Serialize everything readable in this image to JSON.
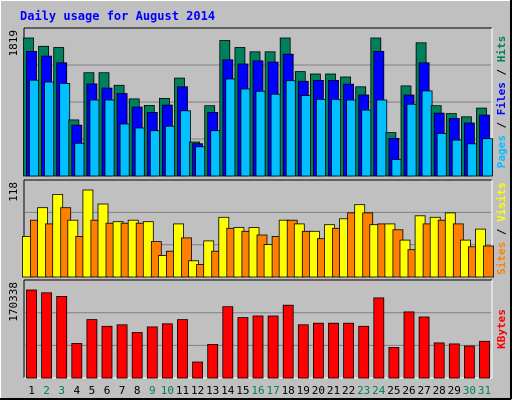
{
  "title": "Daily usage for August 2014",
  "colors": {
    "background": "#c0c0c0",
    "plot": "#c0c0c0",
    "title": "#0000ff",
    "hits": "#00805c",
    "files": "#0000ff",
    "pages": "#00c0ff",
    "visits": "#ffff00",
    "sites": "#ff8000",
    "kbytes": "#ff0000",
    "label_normal": "#000000",
    "label_weekend": "#00805c"
  },
  "chart_data": [
    {
      "type": "bar",
      "panel": "hits-files-pages",
      "title": "Daily usage for August 2014",
      "ylabel": "Pages / Files / Hits",
      "ymax_label": "1819",
      "ylim": [
        0,
        1819
      ],
      "categories": [
        "1",
        "2",
        "3",
        "4",
        "5",
        "6",
        "7",
        "8",
        "9",
        "10",
        "11",
        "12",
        "13",
        "14",
        "15",
        "16",
        "17",
        "18",
        "19",
        "20",
        "21",
        "22",
        "23",
        "24",
        "25",
        "26",
        "27",
        "28",
        "29",
        "30",
        "31"
      ],
      "series": [
        {
          "name": "Hits",
          "values": [
            1819,
            1710,
            1694,
            740,
            1361,
            1361,
            1195,
            1016,
            931,
            1023,
            1290,
            448,
            927,
            1786,
            1694,
            1637,
            1637,
            1819,
            1376,
            1344,
            1344,
            1305,
            1176,
            1819,
            572,
            1187,
            1756,
            926,
            823,
            780,
            895
          ]
        },
        {
          "name": "Files",
          "values": [
            1643,
            1580,
            1492,
            670,
            1214,
            1159,
            1088,
            910,
            838,
            934,
            1176,
            426,
            838,
            1531,
            1476,
            1518,
            1501,
            1606,
            1248,
            1260,
            1260,
            1210,
            1068,
            1643,
            495,
            1068,
            1492,
            829,
            758,
            699,
            803
          ]
        },
        {
          "name": "Pages",
          "values": [
            1263,
            1239,
            1220,
            431,
            1002,
            1002,
            686,
            633,
            597,
            657,
            860,
            385,
            597,
            1279,
            1147,
            1116,
            1078,
            1256,
            1060,
            1010,
            1010,
            1002,
            869,
            1002,
            218,
            945,
            1122,
            560,
            473,
            424,
            492
          ]
        }
      ]
    },
    {
      "type": "bar",
      "panel": "visits-sites",
      "ylabel": "Sites / Visits",
      "ymax_label": "118",
      "ylim": [
        0,
        118
      ],
      "categories": [
        "1",
        "2",
        "3",
        "4",
        "5",
        "6",
        "7",
        "8",
        "9",
        "10",
        "11",
        "12",
        "13",
        "14",
        "15",
        "16",
        "17",
        "18",
        "19",
        "20",
        "21",
        "22",
        "23",
        "24",
        "25",
        "26",
        "27",
        "28",
        "29",
        "30",
        "31"
      ],
      "series": [
        {
          "name": "Visits",
          "values": [
            55,
            94,
            112,
            77,
            118,
            99,
            75,
            77,
            75,
            29,
            72,
            22,
            49,
            81,
            67,
            67,
            44,
            77,
            72,
            62,
            71,
            79,
            98,
            71,
            72,
            50,
            83,
            81,
            87,
            50,
            65
          ]
        },
        {
          "name": "Sites",
          "values": [
            77,
            72,
            94,
            55,
            77,
            73,
            73,
            73,
            48,
            35,
            53,
            17,
            35,
            66,
            62,
            57,
            55,
            77,
            62,
            52,
            66,
            87,
            87,
            72,
            64,
            37,
            72,
            77,
            72,
            41,
            42
          ]
        }
      ]
    },
    {
      "type": "bar",
      "panel": "kbytes",
      "ylabel": "KBytes",
      "ymax_label": "170338",
      "ylim": [
        0,
        170338
      ],
      "categories": [
        "1",
        "2",
        "3",
        "4",
        "5",
        "6",
        "7",
        "8",
        "9",
        "10",
        "11",
        "12",
        "13",
        "14",
        "15",
        "16",
        "17",
        "18",
        "19",
        "20",
        "21",
        "22",
        "23",
        "24",
        "25",
        "26",
        "27",
        "28",
        "29",
        "30",
        "31"
      ],
      "weekend_days": [
        "2",
        "3",
        "9",
        "10",
        "16",
        "17",
        "23",
        "24",
        "30",
        "31"
      ],
      "series": [
        {
          "name": "KBytes",
          "values": [
            170338,
            165000,
            158000,
            67000,
            113000,
            100000,
            103000,
            88000,
            99000,
            105000,
            113000,
            31000,
            65000,
            138000,
            117000,
            120000,
            120000,
            141000,
            103000,
            106000,
            106000,
            106000,
            100000,
            155000,
            59000,
            128000,
            118000,
            68000,
            66000,
            62000,
            71000
          ]
        }
      ]
    }
  ]
}
